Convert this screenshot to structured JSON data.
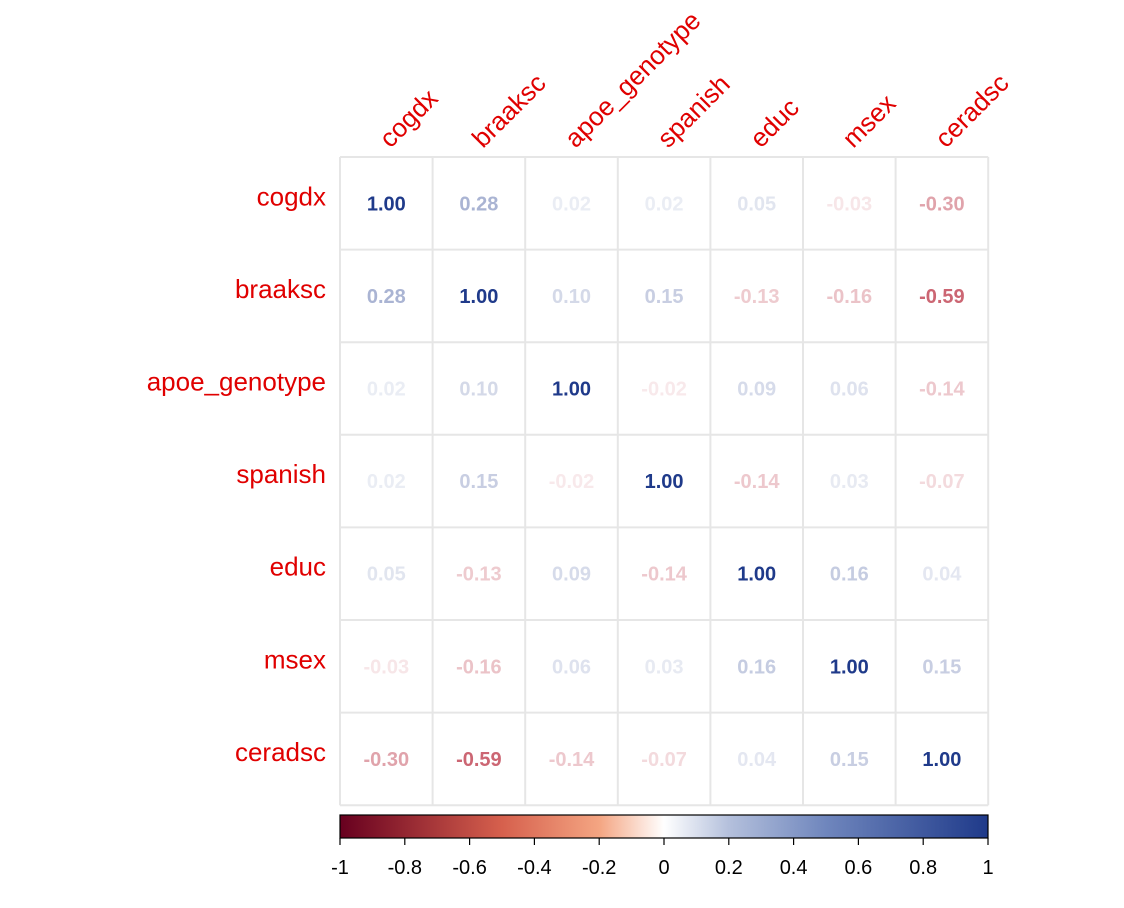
{
  "chart_data": {
    "type": "heatmap",
    "variables": [
      "cogdx",
      "braaksc",
      "apoe_genotype",
      "spanish",
      "educ",
      "msex",
      "ceradsc"
    ],
    "matrix": [
      [
        "1.00",
        "0.28",
        "0.02",
        "0.02",
        "0.05",
        "-0.03",
        "-0.30"
      ],
      [
        "0.28",
        "1.00",
        "0.10",
        "0.15",
        "-0.13",
        "-0.16",
        "-0.59"
      ],
      [
        "0.02",
        "0.10",
        "1.00",
        "-0.02",
        "0.09",
        "0.06",
        "-0.14"
      ],
      [
        "0.02",
        "0.15",
        "-0.02",
        "1.00",
        "-0.14",
        "0.03",
        "-0.07"
      ],
      [
        "0.05",
        "-0.13",
        "0.09",
        "-0.14",
        "1.00",
        "0.16",
        "0.04"
      ],
      [
        "-0.03",
        "-0.16",
        "0.06",
        "0.03",
        "0.16",
        "1.00",
        "0.15"
      ],
      [
        "-0.30",
        "-0.59",
        "-0.14",
        "-0.07",
        "0.04",
        "0.15",
        "1.00"
      ]
    ],
    "colorbar": {
      "range": [
        -1,
        1
      ],
      "ticks": [
        "-1",
        "-0.8",
        "-0.6",
        "-0.4",
        "-0.2",
        "0",
        "0.2",
        "0.4",
        "0.6",
        "0.8",
        "1"
      ],
      "colors": [
        "#67001f",
        "#b2182b",
        "#d6604d",
        "#f4a582",
        "#fddbc7",
        "#ffffff",
        "#d1e5f0",
        "#92c5de",
        "#4393c3",
        "#2166ac",
        "#053061"
      ]
    },
    "label_color": "#e00000",
    "grid_color": "#e6e6e6"
  }
}
